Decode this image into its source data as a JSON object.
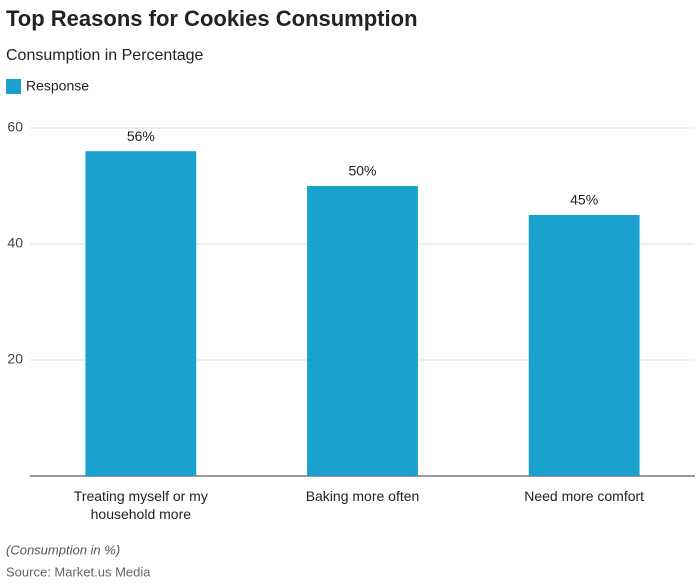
{
  "chart_data": {
    "type": "bar",
    "title": "Top Reasons for Cookies Consumption",
    "subtitle": "Consumption in Percentage",
    "categories": [
      "Treating myself or my household more",
      "Baking more often",
      "Need more comfort"
    ],
    "series": [
      {
        "name": "Response",
        "color": "#1aa1ce",
        "values": [
          56,
          50,
          45
        ],
        "value_labels": [
          "56%",
          "50%",
          "45%"
        ]
      }
    ],
    "ylim": [
      0,
      60
    ],
    "yticks": [
      20,
      40,
      60
    ],
    "grid": true,
    "note": "(Consumption in %)",
    "source": "Source: Market.us Media"
  }
}
